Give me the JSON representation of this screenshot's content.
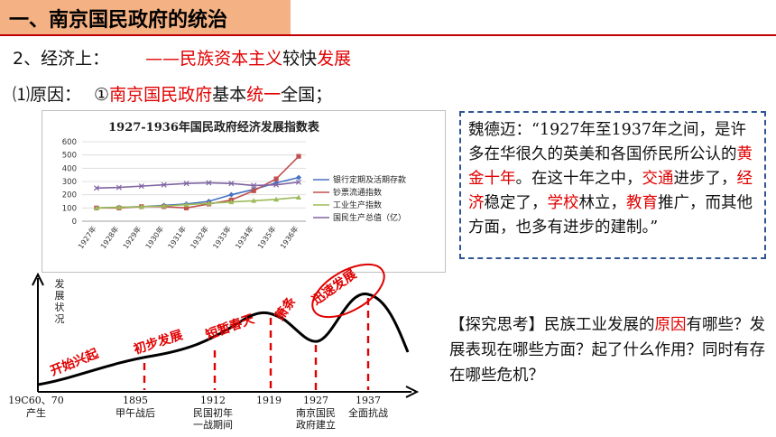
{
  "header": {
    "title": "一、南京国民政府的统治"
  },
  "line2": {
    "prefix": "2、经济上：",
    "dash": "——",
    "p1": "民族资本主义",
    "p2": "较快",
    "p3": "发展"
  },
  "line3": {
    "prefix": "⑴原因：",
    "num": "①",
    "p1": "南京国民政府",
    "p2": "基本",
    "p3": "统一",
    "p4": "全国；"
  },
  "index_chart": {
    "chart_data": {
      "type": "line",
      "title": "1927-1936年国民政府经济发展指数表",
      "x": [
        "1927年",
        "1928年",
        "1929年",
        "1930年",
        "1931年",
        "1932年",
        "1933年",
        "1934年",
        "1935年",
        "1936年"
      ],
      "ylim": [
        0,
        600
      ],
      "yticks": [
        "0",
        "100",
        "200",
        "300",
        "400",
        "500",
        "600"
      ],
      "series": [
        {
          "name": "银行定期及活期存款",
          "color": "#4472c4",
          "marker": "diamond",
          "values": [
            100,
            105,
            110,
            120,
            130,
            150,
            200,
            240,
            290,
            330
          ]
        },
        {
          "name": "钞票流通指数",
          "color": "#c0504d",
          "marker": "square",
          "values": [
            100,
            100,
            110,
            110,
            100,
            130,
            160,
            230,
            320,
            490
          ]
        },
        {
          "name": "工业生产指数",
          "color": "#9bbb59",
          "marker": "triangle",
          "values": [
            100,
            105,
            110,
            115,
            125,
            135,
            145,
            155,
            165,
            180
          ]
        },
        {
          "name": "国民生产总值（亿）",
          "color": "#8064a2",
          "marker": "x",
          "values": [
            250,
            255,
            265,
            275,
            285,
            290,
            285,
            270,
            275,
            295
          ]
        }
      ]
    }
  },
  "quote": {
    "s1": "魏德迈：“1927年至1937年之间，是许多在华很久的英美和各国侨民所公认的",
    "r1": "黄金十年",
    "s2": "。在这十年之中，",
    "r2": "交通",
    "s3": "进步了，",
    "r3": "经济",
    "s4": "稳定了，",
    "r4": "学校",
    "s5": "林立，",
    "r5": "教育",
    "s6": "推广，而其他方面，也多有进步的建制。”"
  },
  "explore": {
    "open": "【探究思考】民族工业发展的",
    "red": "原因",
    "rest": "有哪些？发展表现在哪些方面？起了什么作用？同时有存在哪些危机？"
  },
  "dev_chart": {
    "chart_data": {
      "type": "line",
      "ylabel": "发展状况",
      "x_labels": [
        {
          "year": "19C60、70",
          "caption": "产生"
        },
        {
          "year": "1895",
          "caption": "甲午战后"
        },
        {
          "year": "1912",
          "caption": "民国初年一战期间"
        },
        {
          "year": "1919",
          "caption": ""
        },
        {
          "year": "1927",
          "caption": "南京国民政府建立"
        },
        {
          "year": "1937",
          "caption": "全面抗战"
        }
      ],
      "phases": [
        "开始兴起",
        "初步发展",
        "短暂春天",
        "萧条",
        "迅速发展"
      ],
      "curve_color": "#000000",
      "label_color": "#e00000"
    }
  },
  "colors": {
    "accent": "#e00000",
    "title_bg": "#f4b183",
    "quote_border": "#2f5597"
  }
}
